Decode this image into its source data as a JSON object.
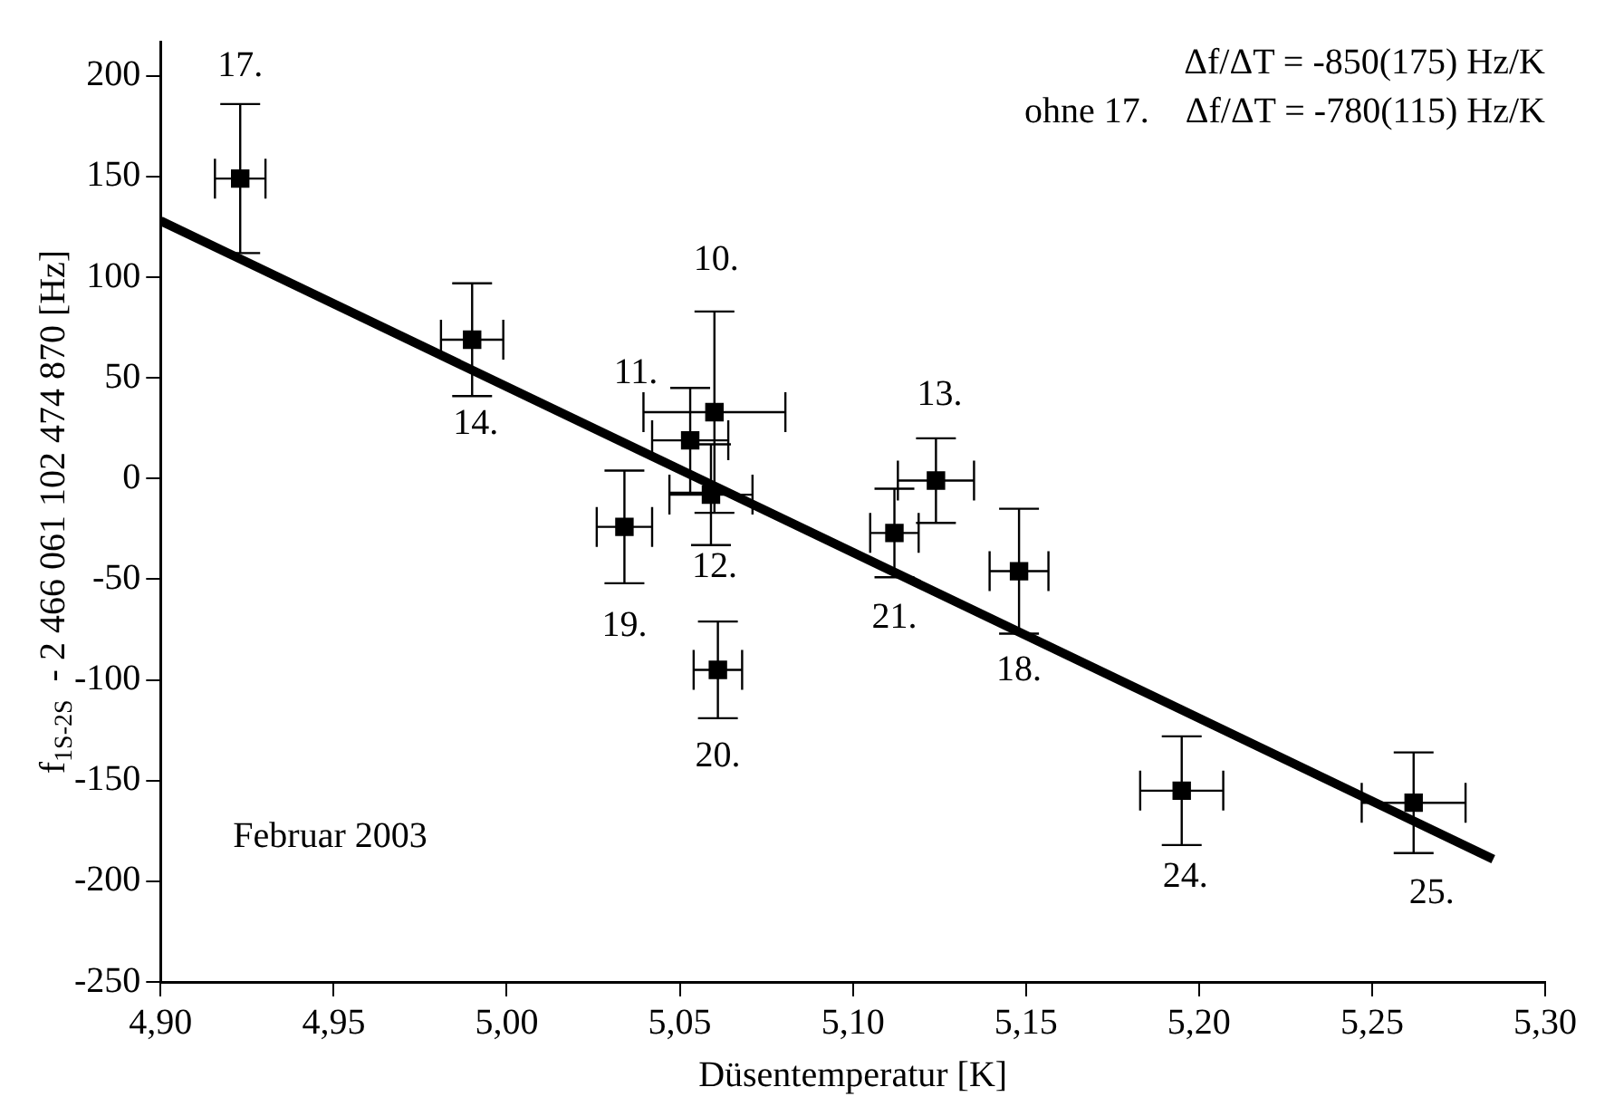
{
  "chart_data": {
    "type": "scatter",
    "xlabel": "Düsentemperatur [K]",
    "ylabel": "f$_{1S-2S}$  - 2 466 061 102 474 870 [Hz]",
    "xlim": [
      4.9,
      5.3
    ],
    "xticks": [
      {
        "value": 4.9,
        "label": "4,90"
      },
      {
        "value": 4.95,
        "label": "4,95"
      },
      {
        "value": 5.0,
        "label": "5,00"
      },
      {
        "value": 5.05,
        "label": "5,05"
      },
      {
        "value": 5.1,
        "label": "5,10"
      },
      {
        "value": 5.15,
        "label": "5,15"
      },
      {
        "value": 5.2,
        "label": "5,20"
      },
      {
        "value": 5.25,
        "label": "5,25"
      },
      {
        "value": 5.3,
        "label": "5,30"
      }
    ],
    "ylim": [
      -250,
      217
    ],
    "yticks": [
      -250,
      -200,
      -150,
      -100,
      -50,
      0,
      50,
      100,
      150,
      200
    ],
    "grid": false,
    "legend": false,
    "marker": "square",
    "series": [
      {
        "color": "#000000",
        "x": [
          4.923,
          4.99,
          5.06,
          5.053,
          5.059,
          5.034,
          5.124,
          5.112,
          5.148,
          5.061,
          5.195,
          5.262
        ],
        "values": [
          149,
          69,
          33,
          19,
          -8,
          -24,
          -1,
          -27,
          -46,
          -95,
          -155,
          -161
        ],
        "errors": [
          37,
          28,
          50,
          26,
          25,
          28,
          21,
          22,
          31,
          24,
          27,
          25
        ],
        "xerrors": [
          0.0073,
          0.009,
          0.0205,
          0.011,
          0.012,
          0.008,
          0.011,
          0.007,
          0.0085,
          0.007,
          0.012,
          0.015
        ]
      },
      {
        "type": "line",
        "color": "#000000",
        "x": [
          4.9,
          5.285
        ],
        "values": [
          128,
          -189
        ],
        "marker": "none"
      }
    ],
    "annotations": [
      "Δf/ΔT = -850(175) Hz/K",
      "ohne 17.    Δf/ΔT = -780(115) Hz/K",
      "Februar 2003",
      {
        "text": "17.",
        "x": 4.923,
        "y": 149
      },
      {
        "text": "14.",
        "x": 4.99,
        "y": 69
      },
      {
        "text": "10.",
        "x": 5.06,
        "y": 83
      },
      {
        "text": "11.",
        "x": 5.053,
        "y": 19
      },
      {
        "text": "12.",
        "x": 5.059,
        "y": -8
      },
      {
        "text": "19.",
        "x": 5.034,
        "y": -24
      },
      {
        "text": "13.",
        "x": 5.124,
        "y": -1
      },
      {
        "text": "21.",
        "x": 5.112,
        "y": -27
      },
      {
        "text": "18.",
        "x": 5.148,
        "y": -46
      },
      {
        "text": "20.",
        "x": 5.061,
        "y": -95
      },
      {
        "text": "24.",
        "x": 5.195,
        "y": -155
      },
      {
        "text": "25.",
        "x": 5.262,
        "y": -161
      }
    ]
  }
}
